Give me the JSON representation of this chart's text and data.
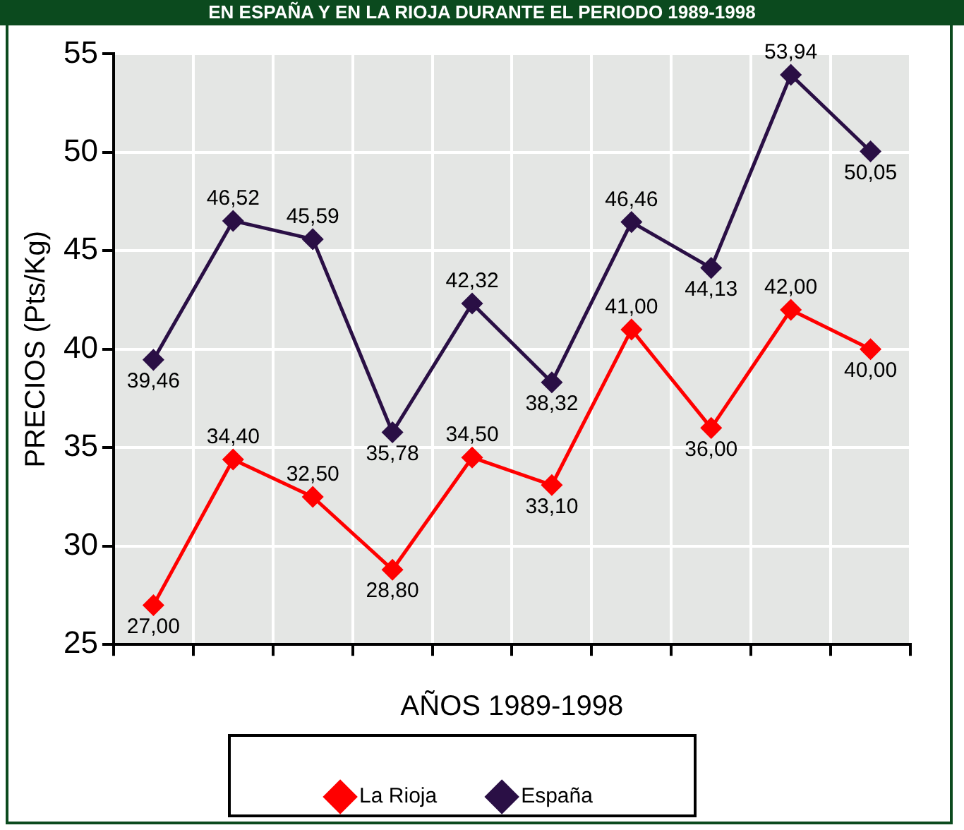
{
  "chart_data": {
    "type": "line",
    "title": "EN ESPAÑA Y EN LA RIOJA DURANTE EL PERIODO 1989-1998",
    "xlabel": "AÑOS 1989-1998",
    "ylabel": "PRECIOS (Pts/Kg)",
    "categories": [
      null,
      null,
      null,
      null,
      null,
      null,
      null,
      null,
      null,
      null
    ],
    "series": [
      {
        "name": "La Rioja",
        "color": "#ff0000",
        "values": [
          27.0,
          34.4,
          32.5,
          28.8,
          34.5,
          33.1,
          41.0,
          36.0,
          42.0,
          40.0
        ],
        "value_labels": [
          "27,00",
          "34,40",
          "32,50",
          "28,80",
          "34,50",
          "33,10",
          "41,00",
          "36,00",
          "42,00",
          "40,00"
        ]
      },
      {
        "name": "España",
        "color": "#2a0f45",
        "values": [
          39.46,
          46.52,
          45.59,
          35.78,
          42.32,
          38.32,
          46.46,
          44.13,
          53.94,
          50.05
        ],
        "value_labels": [
          "39,46",
          "46,52",
          "45,59",
          "35,78",
          "42,32",
          "38,32",
          "46,46",
          "44,13",
          "53,94",
          "50,05"
        ]
      }
    ],
    "ylim": [
      25,
      55
    ],
    "yticks": [
      25,
      30,
      35,
      40,
      45,
      50,
      55
    ],
    "grid": true,
    "legend": "bottom",
    "marker": "diamond",
    "line_style": "solid"
  }
}
